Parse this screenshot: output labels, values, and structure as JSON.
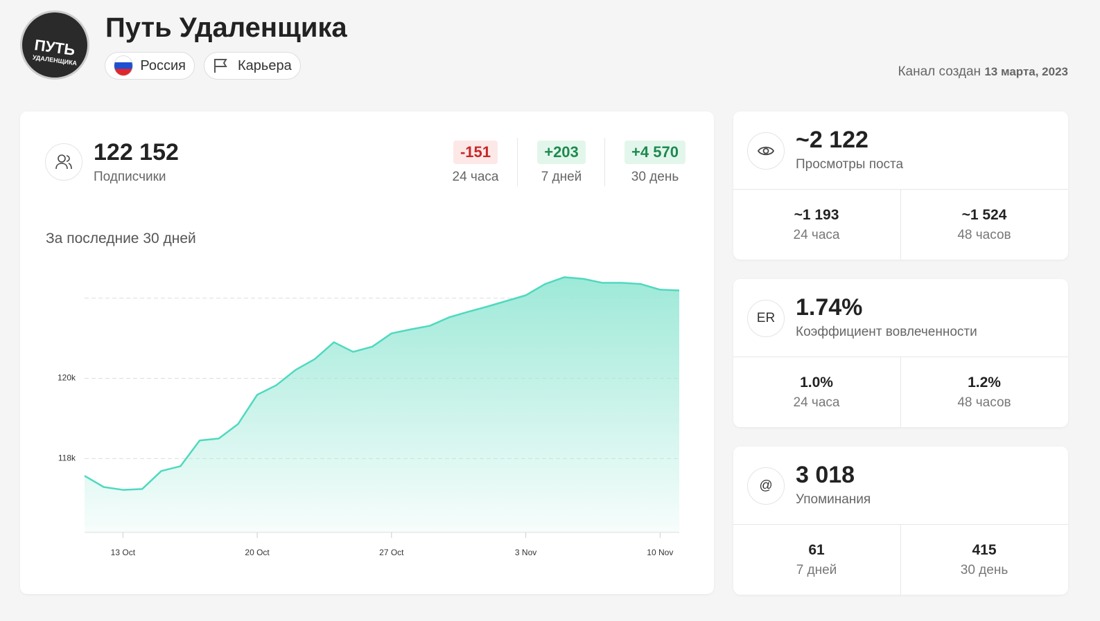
{
  "header": {
    "avatar": [
      "ПУТЬ",
      "УДАЛЕНЩИКА"
    ],
    "title": "Путь Удаленщика",
    "tags": [
      "Россия",
      "Карьера"
    ],
    "created_label": "Канал создан",
    "created_date": "13 марта, 2023"
  },
  "subscribers": {
    "value": "122 152",
    "label": "Подписчики",
    "deltas": [
      {
        "value": "-151",
        "period": "24 часа"
      },
      {
        "value": "+203",
        "period": "7 дней"
      },
      {
        "value": "+4 570",
        "period": "30 день"
      }
    ]
  },
  "chart": {
    "type": "area",
    "title": "За последние 30 дней",
    "color": "#4fd9bf",
    "x": [
      null,
      null,
      "13 Oct",
      null,
      null,
      null,
      null,
      null,
      null,
      "20 Oct",
      null,
      null,
      null,
      null,
      null,
      null,
      "27 Oct",
      null,
      null,
      null,
      null,
      null,
      null,
      "3 Nov",
      null,
      null,
      null,
      null,
      null,
      null,
      "10 Nov",
      null
    ],
    "values": [
      117570,
      117290,
      117220,
      117240,
      117690,
      117810,
      118450,
      118500,
      118860,
      119590,
      119830,
      120210,
      120480,
      120900,
      120660,
      120790,
      121120,
      121220,
      121310,
      121520,
      121660,
      121790,
      121930,
      122070,
      122350,
      122520,
      122480,
      122380,
      122380,
      122350,
      122210,
      122190
    ],
    "ylim": [
      116160,
      122700
    ],
    "yticks": [
      {
        "value": 118000,
        "label": "118k"
      },
      {
        "value": 120000,
        "label": "120k"
      },
      {
        "value": 122000,
        "label": null
      }
    ],
    "grid": true
  },
  "views": {
    "icon_text": null,
    "value": "~2 122",
    "label": "Просмотры поста",
    "cells": [
      {
        "value": "~1 193",
        "label": "24 часа"
      },
      {
        "value": "~1 524",
        "label": "48 часов"
      }
    ]
  },
  "er": {
    "icon_text": "ER",
    "value": "1.74%",
    "label": "Коэффициент вовлеченности",
    "cells": [
      {
        "value": "1.0%",
        "label": "24 часа"
      },
      {
        "value": "1.2%",
        "label": "48 часов"
      }
    ]
  },
  "mentions": {
    "icon_text": "@",
    "value": "3 018",
    "label": "Упоминания",
    "cells": [
      {
        "value": "61",
        "label": "7 дней"
      },
      {
        "value": "415",
        "label": "30 день"
      }
    ]
  }
}
